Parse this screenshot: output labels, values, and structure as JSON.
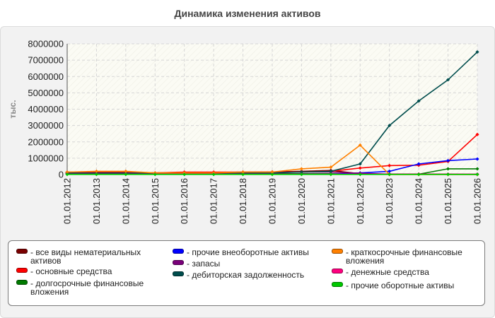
{
  "page_title": "Динамика изменения активов",
  "chart_data": {
    "type": "line",
    "title": "Динамика изменения активов",
    "ylabel": "тыс.",
    "xlabel": "",
    "ylim": [
      0,
      8000000
    ],
    "yticks": [
      0,
      1000000,
      2000000,
      3000000,
      4000000,
      5000000,
      6000000,
      7000000,
      8000000
    ],
    "categories": [
      "01.01.2012",
      "01.01.2013",
      "01.01.2014",
      "01.01.2015",
      "01.01.2016",
      "01.01.2017",
      "01.01.2018",
      "01.01.2019",
      "01.01.2020",
      "01.01.2021",
      "01.01.2022",
      "01.01.2023",
      "01.01.2024",
      "01.01.2025",
      "01.01.2026"
    ],
    "grid": true,
    "legend_position": "bottom",
    "series": [
      {
        "name": "все виды нематериальных активов",
        "color": "#7a0000",
        "values": [
          150000,
          150000,
          140000,
          100000,
          130000,
          120000,
          150000,
          160000,
          200000,
          250000,
          50000,
          30000,
          30000,
          20000,
          10000
        ]
      },
      {
        "name": "основные средства",
        "color": "#ff0000",
        "values": [
          120000,
          130000,
          120000,
          100000,
          150000,
          150000,
          150000,
          150000,
          150000,
          200000,
          400000,
          550000,
          570000,
          800000,
          2450000
        ]
      },
      {
        "name": "долгосрочные финансовые вложения",
        "color": "#007a00",
        "values": [
          60000,
          60000,
          60000,
          50000,
          50000,
          50000,
          50000,
          50000,
          50000,
          50000,
          30000,
          20000,
          20000,
          350000,
          350000
        ]
      },
      {
        "name": "прочие внеоборотные активы",
        "color": "#0000ff",
        "values": [
          20000,
          20000,
          20000,
          20000,
          20000,
          20000,
          20000,
          20000,
          20000,
          20000,
          100000,
          200000,
          650000,
          850000,
          950000
        ]
      },
      {
        "name": "запасы",
        "color": "#7a007a",
        "values": [
          100000,
          100000,
          100000,
          90000,
          90000,
          90000,
          100000,
          120000,
          150000,
          150000,
          80000,
          20000,
          20000,
          20000,
          20000
        ]
      },
      {
        "name": "дебиторская задолженность",
        "color": "#004d4d",
        "values": [
          80000,
          80000,
          80000,
          70000,
          70000,
          80000,
          80000,
          100000,
          150000,
          200000,
          650000,
          3000000,
          4500000,
          5800000,
          7500000
        ]
      },
      {
        "name": "краткосрочные финансовые вложения",
        "color": "#ff8000",
        "values": [
          150000,
          200000,
          200000,
          100000,
          100000,
          100000,
          150000,
          150000,
          350000,
          450000,
          1800000,
          0,
          0,
          0,
          0
        ]
      },
      {
        "name": "денежные средства",
        "color": "#ff007f",
        "values": [
          20000,
          20000,
          20000,
          20000,
          20000,
          20000,
          20000,
          20000,
          20000,
          20000,
          20000,
          20000,
          20000,
          20000,
          20000
        ]
      },
      {
        "name": "прочие оборотные активы",
        "color": "#00c800",
        "values": [
          10000,
          10000,
          10000,
          10000,
          10000,
          10000,
          10000,
          10000,
          10000,
          10000,
          10000,
          10000,
          10000,
          10000,
          10000
        ]
      }
    ]
  }
}
